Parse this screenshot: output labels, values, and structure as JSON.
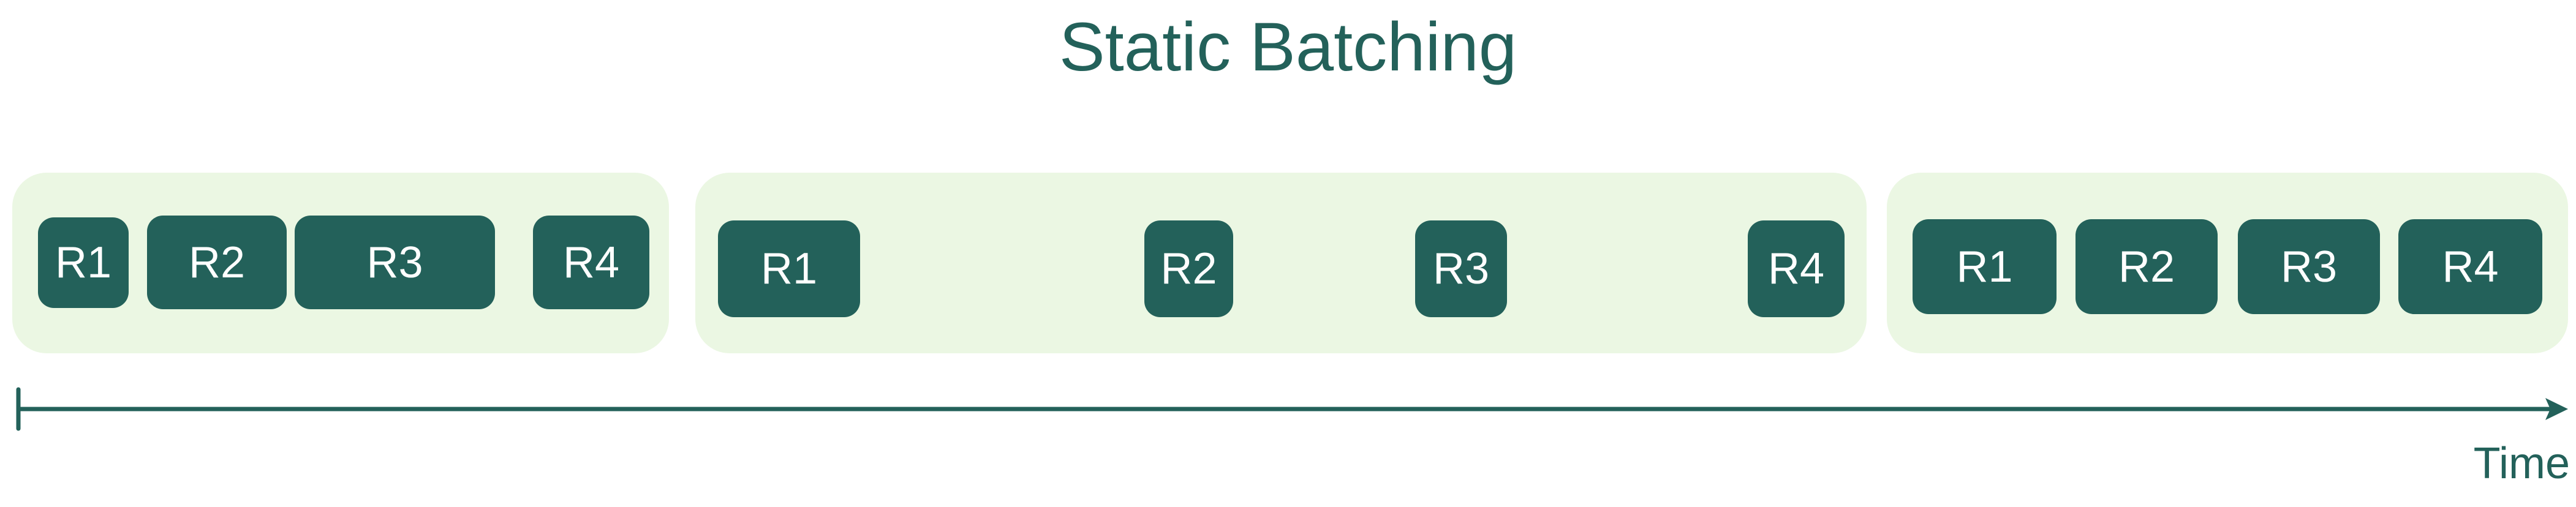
{
  "title": "Static Batching",
  "axis_label": "Time",
  "colors": {
    "request_fill": "#23615a",
    "request_text": "#ffffff",
    "batch_background": "#ebf7e3",
    "title_text": "#23615a"
  },
  "batches": [
    {
      "requests": [
        "R1",
        "R2",
        "R3",
        "R4"
      ]
    },
    {
      "requests": [
        "R1",
        "R2",
        "R3",
        "R4"
      ]
    },
    {
      "requests": [
        "R1",
        "R2",
        "R3",
        "R4"
      ]
    }
  ]
}
